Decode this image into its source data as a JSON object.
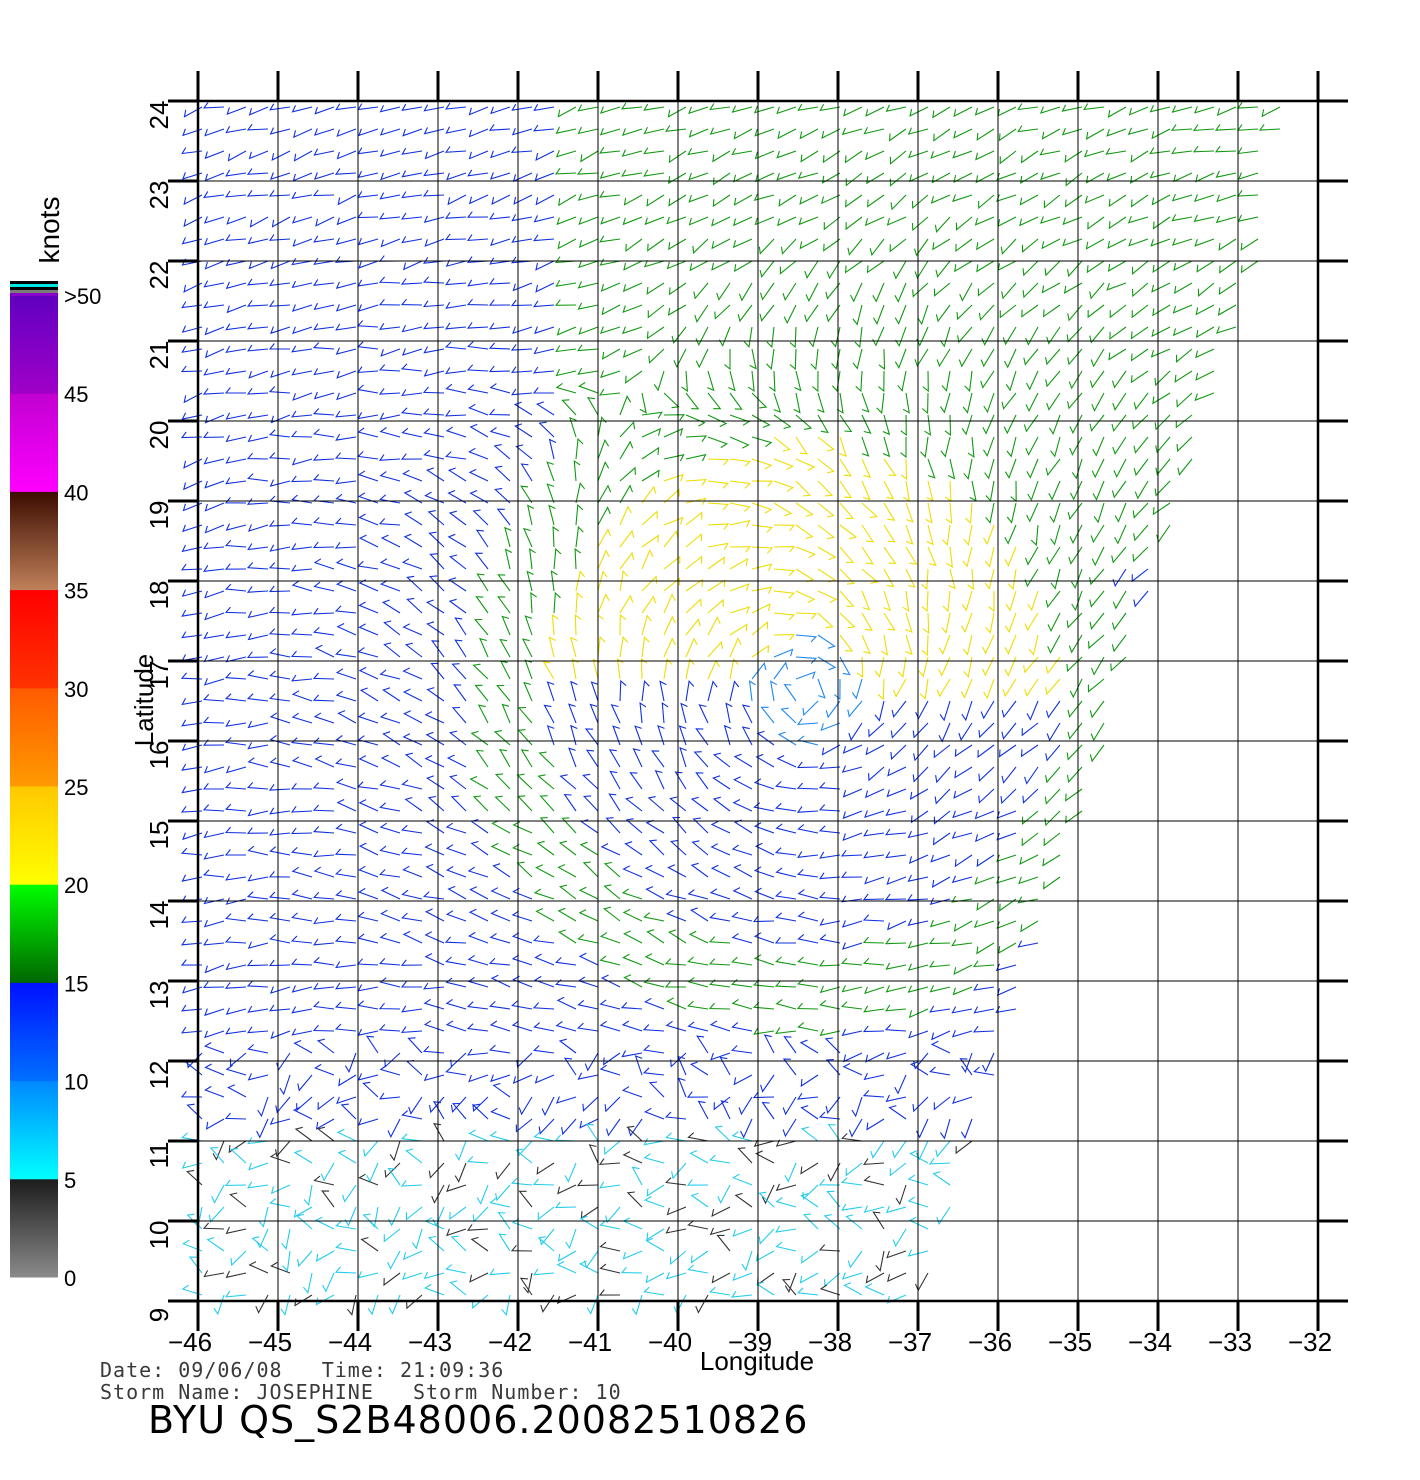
{
  "chart_data": {
    "type": "wind-vector-field",
    "xlabel": "Longitude",
    "ylabel": "Latitude",
    "xlim": [
      -46,
      -32
    ],
    "ylim": [
      9,
      24
    ],
    "x_ticks": [
      -46,
      -45,
      -44,
      -43,
      -42,
      -41,
      -40,
      -39,
      -38,
      -37,
      -36,
      -35,
      -34,
      -33,
      -32
    ],
    "y_ticks": [
      9,
      10,
      11,
      12,
      13,
      14,
      15,
      16,
      17,
      18,
      19,
      20,
      21,
      22,
      23,
      24
    ],
    "grid": true,
    "storm_center": {
      "lon": -38.4,
      "lat": 16.6
    },
    "colorbar": {
      "unit": "knots",
      "labels": [
        "0",
        "5",
        "10",
        "15",
        "20",
        "25",
        "30",
        "35",
        "40",
        "45",
        ">50"
      ],
      "bands": [
        {
          "from": 0,
          "to": 5,
          "colors": [
            "#8a8a8a",
            "#1c1c1c"
          ]
        },
        {
          "from": 5,
          "to": 10,
          "colors": [
            "#00ffff",
            "#0088ff"
          ]
        },
        {
          "from": 10,
          "to": 15,
          "colors": [
            "#0070ff",
            "#0010ff"
          ]
        },
        {
          "from": 15,
          "to": 20,
          "colors": [
            "#006600",
            "#00ff00"
          ]
        },
        {
          "from": 20,
          "to": 25,
          "colors": [
            "#ffff00",
            "#ffc800"
          ]
        },
        {
          "from": 25,
          "to": 30,
          "colors": [
            "#ff9a00",
            "#ff5a00"
          ]
        },
        {
          "from": 30,
          "to": 35,
          "colors": [
            "#ff3300",
            "#ff0000"
          ]
        },
        {
          "from": 35,
          "to": 40,
          "colors": [
            "#c0805a",
            "#3c0c00"
          ]
        },
        {
          "from": 40,
          "to": 45,
          "colors": [
            "#ff00ff",
            "#c000d0"
          ]
        },
        {
          "from": 45,
          "to": 50,
          "colors": [
            "#a000c8",
            "#6000c0"
          ]
        }
      ]
    }
  },
  "info": {
    "date_line": "Date: 09/06/08   Time: 21:09:36",
    "storm_line": "Storm Name: JOSEPHINE   Storm Number: 10"
  },
  "caption": "BYU QS_S2B48006.20082510826"
}
